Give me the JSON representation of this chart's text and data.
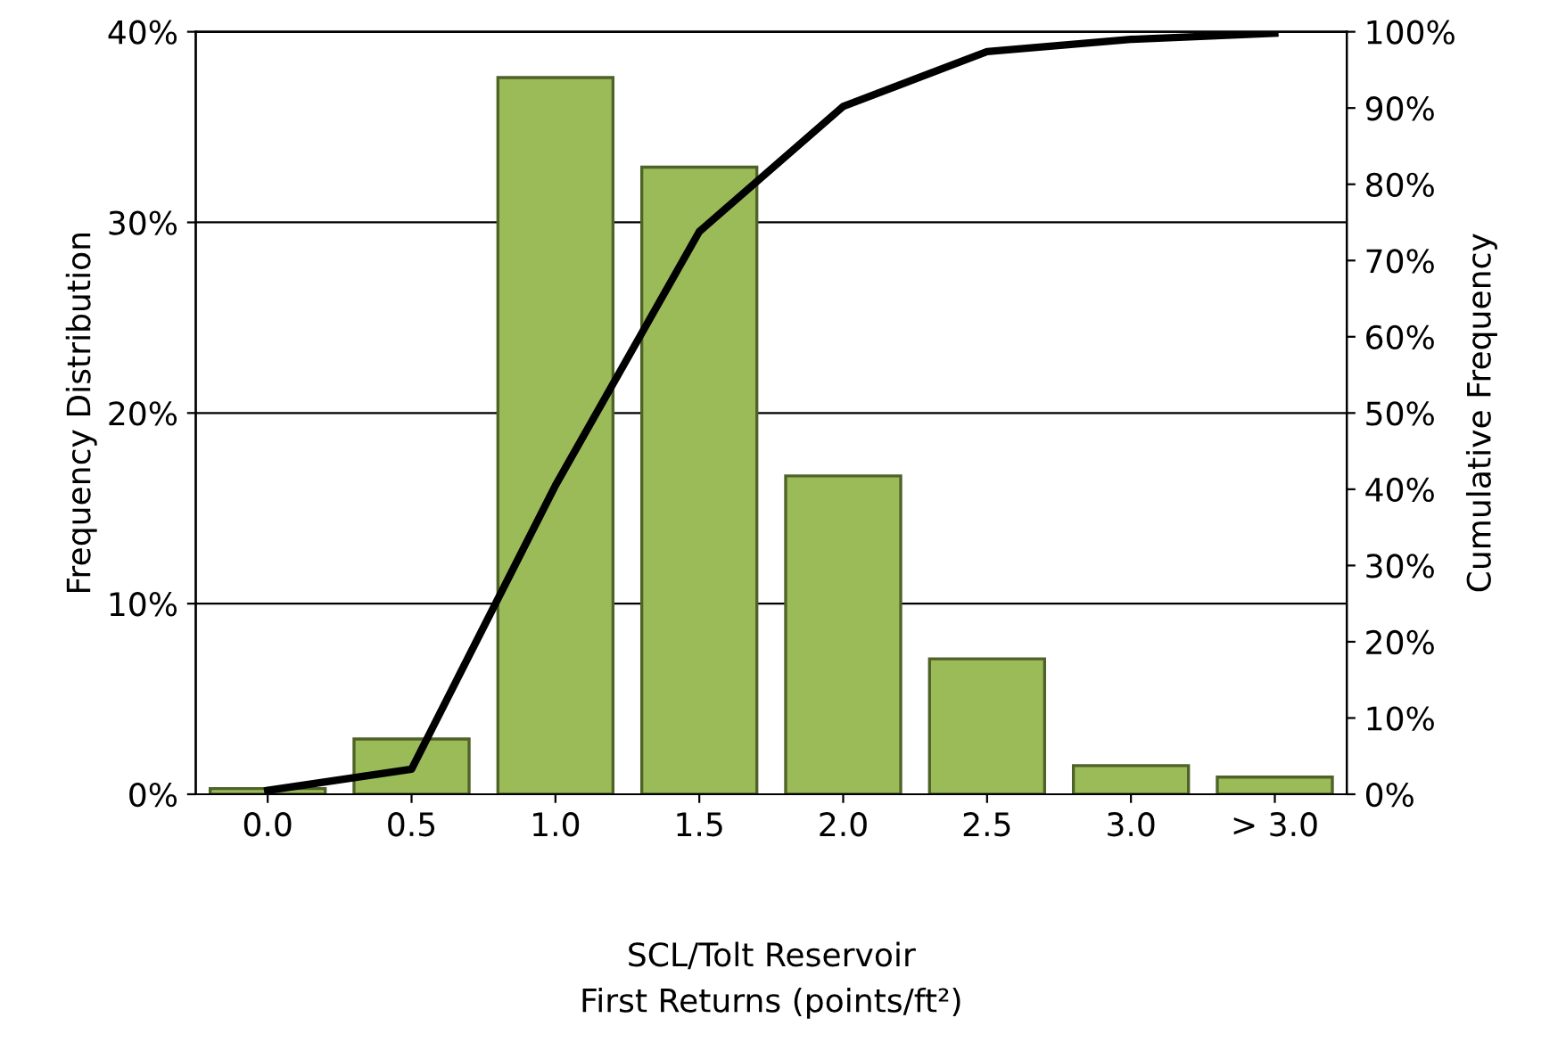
{
  "chart_data": {
    "type": "bar",
    "xlabel": "SCL/Tolt Reservoir\nFirst Returns (points/ft²)",
    "ylabel": "Frequency Distribution",
    "y2label": "Cumulative Frequency",
    "categories": [
      "0.0",
      "0.5",
      "1.0",
      "1.5",
      "2.0",
      "2.5",
      "3.0",
      "> 3.0"
    ],
    "series": [
      {
        "type": "bar",
        "color": "#9bbb59",
        "values": [
          0.3,
          2.9,
          37.6,
          32.9,
          16.7,
          7.1,
          1.5,
          0.9
        ]
      },
      {
        "type": "line",
        "axis": "y2",
        "color": "#000000",
        "values": [
          0.5,
          3.3,
          40.5,
          73.8,
          90.2,
          97.4,
          99.0,
          99.8
        ]
      }
    ],
    "ylim": [
      0,
      40
    ],
    "yticks": [
      {
        "value": 0,
        "label": "0%"
      },
      {
        "value": 10,
        "label": "10%"
      },
      {
        "value": 20,
        "label": "20%"
      },
      {
        "value": 30,
        "label": "30%"
      },
      {
        "value": 40,
        "label": "40%"
      }
    ],
    "y2lim": [
      0,
      100
    ],
    "y2ticks": [
      {
        "value": 0,
        "label": "0%"
      },
      {
        "value": 10,
        "label": "10%"
      },
      {
        "value": 20,
        "label": "20%"
      },
      {
        "value": 30,
        "label": "30%"
      },
      {
        "value": 40,
        "label": "40%"
      },
      {
        "value": 50,
        "label": "50%"
      },
      {
        "value": 60,
        "label": "60%"
      },
      {
        "value": 70,
        "label": "70%"
      },
      {
        "value": 80,
        "label": "80%"
      },
      {
        "value": 90,
        "label": "90%"
      },
      {
        "value": 100,
        "label": "100%"
      }
    ],
    "grid": "y",
    "marker": "none",
    "line_style": "solid"
  }
}
